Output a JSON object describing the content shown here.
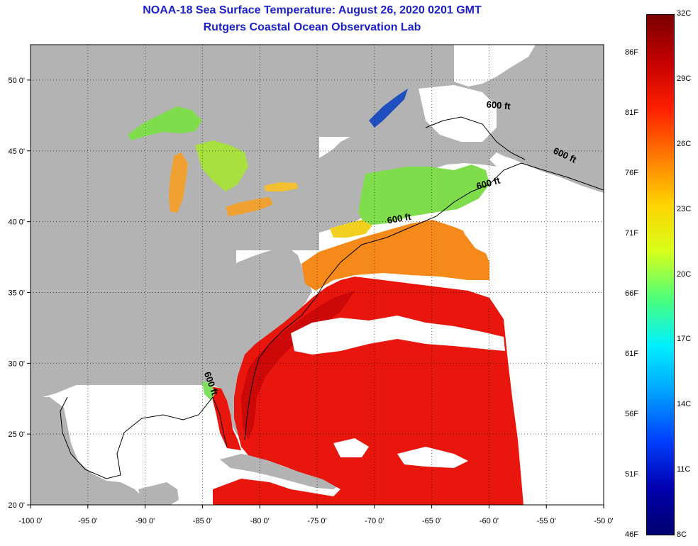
{
  "title": "NOAA-18 Sea Surface Temperature:  August 26, 2020 0201 GMT",
  "subtitle": "Rutgers Coastal Ocean Observation Lab",
  "map": {
    "lon_range": [
      -100,
      -50
    ],
    "lat_range": [
      20,
      52.5
    ],
    "lon_ticks": [
      "-100 0'",
      "-95 0'",
      "-90 0'",
      "-85 0'",
      "-80 0'",
      "-75 0'",
      "-70 0'",
      "-65 0'",
      "-60 0'",
      "-55 0'",
      "-50 0'"
    ],
    "lon_values": [
      -100,
      -95,
      -90,
      -85,
      -80,
      -75,
      -70,
      -65,
      -60,
      -55,
      -50
    ],
    "lat_ticks": [
      "20 0'",
      "25 0'",
      "30 0'",
      "35 0'",
      "40 0'",
      "45 0'",
      "50 0'"
    ],
    "lat_values": [
      20,
      25,
      30,
      35,
      40,
      45,
      50
    ],
    "grid": "dotted",
    "contour_label": "600 ft",
    "contour_labels": [
      {
        "text": "600 ft",
        "lon": -59.2,
        "lat": 48.0,
        "rot": 5
      },
      {
        "text": "600 ft",
        "lon": -53.5,
        "lat": 44.5,
        "rot": 25
      },
      {
        "text": "600 ft",
        "lon": -60.0,
        "lat": 42.5,
        "rot": -15
      },
      {
        "text": "600 ft",
        "lon": -67.8,
        "lat": 40.0,
        "rot": -10
      },
      {
        "text": "600 ft",
        "lon": -84.5,
        "lat": 28.5,
        "rot": 70
      }
    ],
    "colors": {
      "land": "#b3b3b3",
      "cloud": "#ffffff",
      "warm": "#e8160c",
      "gulf_stream": "#cc0808",
      "shelf": "#f58a1a",
      "lakes": "#7fdc4a"
    }
  },
  "colorbar": {
    "celsius_labels": [
      "32C",
      "29C",
      "26C",
      "23C",
      "20C",
      "17C",
      "14C",
      "11C",
      "8C"
    ],
    "fahrenheit_labels": [
      "86F",
      "81F",
      "76F",
      "71F",
      "66F",
      "61F",
      "56F",
      "51F",
      "46F"
    ],
    "gradient": [
      "#7a0000",
      "#c40000",
      "#ff2000",
      "#ff7a00",
      "#ffd200",
      "#d8ff1a",
      "#4dff7a",
      "#00f0ff",
      "#00a0ff",
      "#0040ff",
      "#0000b0",
      "#000070"
    ]
  }
}
